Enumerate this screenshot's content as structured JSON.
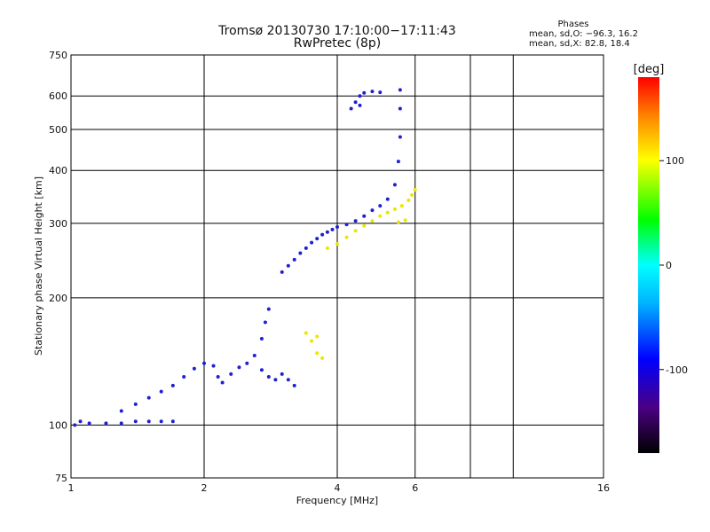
{
  "chart_data": {
    "type": "scatter",
    "title": "Tromsø 20130730 17:10:00−17:11:43",
    "subtitle": "RwPretec (8p)",
    "xlabel": "Frequency [MHz]",
    "ylabel": "Stationary phase Virtual Height [km]",
    "xscale": "log",
    "yscale": "log",
    "xlim": [
      1,
      16
    ],
    "ylim": [
      75,
      750
    ],
    "x_ticks": [
      1,
      2,
      4,
      6,
      16
    ],
    "x_gridlines": [
      2,
      4,
      6,
      8,
      10
    ],
    "y_ticks": [
      75,
      100,
      200,
      300,
      400,
      500,
      600,
      750
    ],
    "y_gridlines": [
      100,
      200,
      300,
      400,
      500,
      600
    ],
    "phase_stats": {
      "heading": "Phases",
      "line_o": "mean, sd,O: −96.3, 16.2",
      "line_x": "mean, sd,X:  82.8, 18.4"
    },
    "colorbar": {
      "label": "[deg]",
      "range": [
        -180,
        180
      ],
      "ticks": [
        100,
        0,
        -100
      ]
    },
    "o_trace_phase_deg": -96.3,
    "x_trace_phase_deg": 82.8,
    "o_trace": [
      [
        1.02,
        100
      ],
      [
        1.05,
        102
      ],
      [
        1.1,
        101
      ],
      [
        1.2,
        101
      ],
      [
        1.3,
        101
      ],
      [
        1.4,
        102
      ],
      [
        1.5,
        102
      ],
      [
        1.6,
        102
      ],
      [
        1.7,
        102
      ],
      [
        1.3,
        108
      ],
      [
        1.4,
        112
      ],
      [
        1.5,
        116
      ],
      [
        1.6,
        120
      ],
      [
        1.7,
        124
      ],
      [
        1.8,
        130
      ],
      [
        1.9,
        136
      ],
      [
        2.0,
        140
      ],
      [
        2.1,
        138
      ],
      [
        2.15,
        130
      ],
      [
        2.2,
        126
      ],
      [
        2.3,
        132
      ],
      [
        2.4,
        137
      ],
      [
        2.5,
        140
      ],
      [
        2.6,
        146
      ],
      [
        2.7,
        160
      ],
      [
        2.75,
        175
      ],
      [
        2.8,
        188
      ],
      [
        2.7,
        135
      ],
      [
        2.8,
        130
      ],
      [
        2.9,
        128
      ],
      [
        3.0,
        132
      ],
      [
        3.1,
        128
      ],
      [
        3.2,
        124
      ],
      [
        3.0,
        230
      ],
      [
        3.1,
        238
      ],
      [
        3.2,
        246
      ],
      [
        3.3,
        255
      ],
      [
        3.4,
        262
      ],
      [
        3.5,
        270
      ],
      [
        3.6,
        276
      ],
      [
        3.7,
        282
      ],
      [
        3.8,
        286
      ],
      [
        3.9,
        290
      ],
      [
        4.0,
        294
      ],
      [
        4.2,
        298
      ],
      [
        4.4,
        304
      ],
      [
        4.6,
        312
      ],
      [
        4.8,
        322
      ],
      [
        5.0,
        330
      ],
      [
        5.2,
        342
      ],
      [
        5.4,
        370
      ],
      [
        5.5,
        420
      ],
      [
        5.55,
        480
      ],
      [
        5.55,
        560
      ],
      [
        5.55,
        620
      ],
      [
        4.4,
        580
      ],
      [
        4.5,
        600
      ],
      [
        4.6,
        610
      ],
      [
        4.8,
        615
      ],
      [
        5.0,
        612
      ],
      [
        4.3,
        560
      ],
      [
        4.5,
        570
      ]
    ],
    "x_trace": [
      [
        3.8,
        262
      ],
      [
        4.0,
        268
      ],
      [
        4.2,
        278
      ],
      [
        4.4,
        288
      ],
      [
        4.6,
        296
      ],
      [
        4.8,
        304
      ],
      [
        5.0,
        312
      ],
      [
        5.2,
        318
      ],
      [
        5.4,
        324
      ],
      [
        5.6,
        330
      ],
      [
        5.8,
        340
      ],
      [
        5.9,
        350
      ],
      [
        6.0,
        360
      ],
      [
        5.7,
        305
      ],
      [
        5.5,
        302
      ],
      [
        3.6,
        162
      ],
      [
        3.5,
        158
      ],
      [
        3.4,
        165
      ],
      [
        3.6,
        148
      ],
      [
        3.7,
        144
      ]
    ]
  }
}
